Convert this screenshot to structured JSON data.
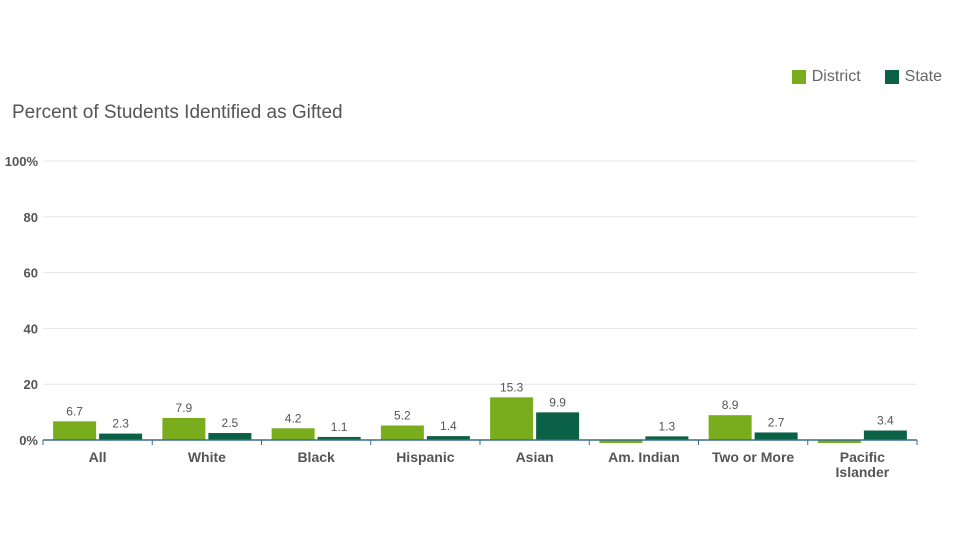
{
  "chart_data": {
    "type": "bar",
    "title": "Percent of Students Identified as Gifted",
    "categories": [
      "All",
      "White",
      "Black",
      "Hispanic",
      "Asian",
      "Am. Indian",
      "Two or More",
      "Pacific Islander"
    ],
    "series": [
      {
        "name": "District",
        "color": "#7aad1e",
        "values": [
          6.7,
          7.9,
          4.2,
          5.2,
          15.3,
          null,
          8.9,
          null
        ]
      },
      {
        "name": "State",
        "color": "#0b6146",
        "values": [
          2.3,
          2.5,
          1.1,
          1.4,
          9.9,
          1.3,
          2.7,
          3.4
        ]
      }
    ],
    "ylim": [
      0,
      100
    ],
    "yticks": [
      0,
      20,
      40,
      60,
      80,
      100
    ],
    "ytick_labels": [
      "0%",
      "20",
      "40",
      "60",
      "80",
      "100%"
    ],
    "grid": true,
    "legend": "top-right",
    "xlabel": "",
    "ylabel": ""
  }
}
